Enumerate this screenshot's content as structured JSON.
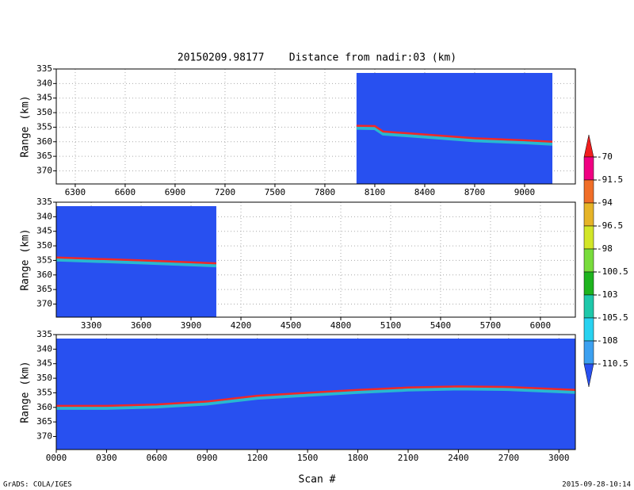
{
  "title": "20150209.98177    Distance from nadir:03 (km)",
  "x_label": "Scan #",
  "footer_left": "GrADS: COLA/IGES",
  "footer_right": "2015-09-28-10:14",
  "colorbar": {
    "levels": [
      -70,
      -91.5,
      -94,
      -96.5,
      -98,
      -100.5,
      -103,
      -105.5,
      -108,
      -110.5
    ],
    "colors": [
      "#f01e1e",
      "#f00082",
      "#f06e28",
      "#e6b428",
      "#d2e628",
      "#78dc3c",
      "#1eb41e",
      "#1ec8aa",
      "#28d2f0",
      "#3ca0f0",
      "#2850f0"
    ]
  },
  "chart_data": [
    {
      "type": "line",
      "y_label": "Range (km)",
      "background": "#2850f0",
      "color": "#f02828",
      "xlim": [
        6186,
        9305
      ],
      "ylim": [
        374.5,
        335
      ],
      "xticks": [
        6300,
        6600,
        6900,
        7200,
        7500,
        7800,
        8100,
        8400,
        8700,
        9000
      ],
      "yticks": [
        335,
        340,
        345,
        350,
        355,
        360,
        365,
        370
      ],
      "grid": true,
      "x": [
        7990,
        8100,
        8150,
        8400,
        8700,
        9000,
        9167
      ],
      "values": [
        354.5,
        354.6,
        356.5,
        357.5,
        358.8,
        359.5,
        360
      ]
    },
    {
      "type": "line",
      "y_label": "Range (km)",
      "background": "#2850f0",
      "color": "#f02828",
      "xlim": [
        3090,
        6210
      ],
      "ylim": [
        374.5,
        335
      ],
      "xticks": [
        3300,
        3600,
        3900,
        4200,
        4500,
        4800,
        5100,
        5400,
        5700,
        6000
      ],
      "yticks": [
        335,
        340,
        345,
        350,
        355,
        360,
        365,
        370
      ],
      "grid": true,
      "x": [
        3090,
        3600,
        4052
      ],
      "values": [
        354,
        355,
        356
      ]
    },
    {
      "type": "line",
      "y_label": "Range (km)",
      "background": "#2850f0",
      "color": "#f02828",
      "xlim": [
        0,
        3098
      ],
      "ylim": [
        374.5,
        335
      ],
      "xticks": [
        {
          "value": 0,
          "label": "0000"
        },
        {
          "value": 300,
          "label": "0300"
        },
        {
          "value": 600,
          "label": "0600"
        },
        {
          "value": 900,
          "label": "0900"
        },
        1200,
        1500,
        1800,
        2100,
        2400,
        2700,
        3000
      ],
      "yticks": [
        335,
        340,
        345,
        350,
        355,
        360,
        365,
        370
      ],
      "grid": true,
      "x": [
        0,
        300,
        600,
        900,
        1200,
        1500,
        1800,
        2100,
        2400,
        2700,
        3098
      ],
      "values": [
        359.5,
        359.5,
        359,
        358,
        356,
        355,
        354,
        353.2,
        352.8,
        353,
        354
      ]
    }
  ]
}
